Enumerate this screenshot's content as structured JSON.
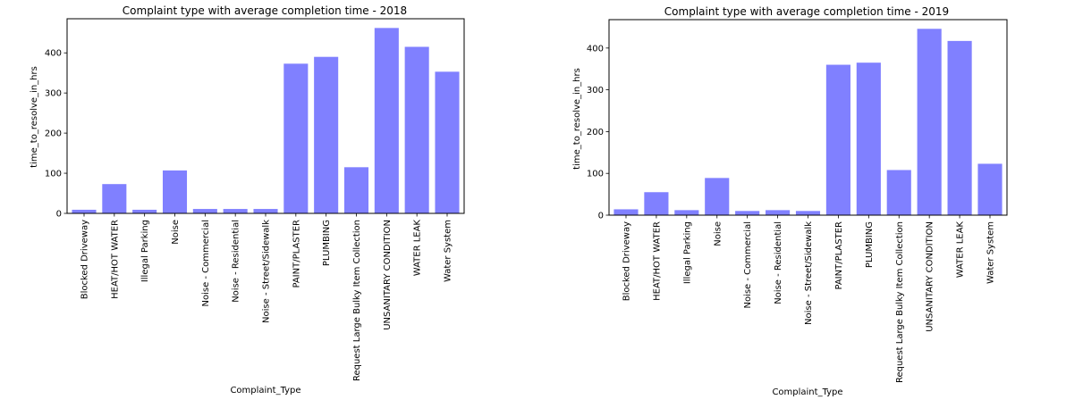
{
  "chart_data": [
    {
      "type": "bar",
      "title": "Complaint type with average completion time - 2018",
      "xlabel": "Complaint_Type",
      "ylabel": "time_to_resolve_in_hrs",
      "categories": [
        "Blocked Driveway",
        "HEAT/HOT WATER",
        "Illegal Parking",
        "Noise",
        "Noise - Commercial",
        "Noise - Residential",
        "Noise - Street/Sidewalk",
        "PAINT/PLASTER",
        "PLUMBING",
        "Request Large Bulky Item Collection",
        "UNSANITARY CONDITION",
        "WATER LEAK",
        "Water System"
      ],
      "values": [
        9,
        73,
        9,
        107,
        11,
        11,
        11,
        373,
        390,
        115,
        462,
        415,
        353
      ],
      "yticks": [
        0,
        100,
        200,
        300,
        400
      ],
      "ylim": [
        0,
        485
      ],
      "color": "#8080ff",
      "grid": false
    },
    {
      "type": "bar",
      "title": "Complaint type with average completion time - 2019",
      "xlabel": "Complaint_Type",
      "ylabel": "time_to_resolve_in_hrs",
      "categories": [
        "Blocked Driveway",
        "HEAT/HOT WATER",
        "Illegal Parking",
        "Noise",
        "Noise - Commercial",
        "Noise - Residential",
        "Noise - Street/Sidewalk",
        "PAINT/PLASTER",
        "PLUMBING",
        "Request Large Bulky Item Collection",
        "UNSANITARY CONDITION",
        "WATER LEAK",
        "Water System"
      ],
      "values": [
        14,
        55,
        12,
        89,
        10,
        12,
        10,
        360,
        365,
        108,
        446,
        417,
        123
      ],
      "yticks": [
        0,
        100,
        200,
        300,
        400
      ],
      "ylim": [
        0,
        468
      ],
      "color": "#8080ff",
      "grid": false
    }
  ]
}
